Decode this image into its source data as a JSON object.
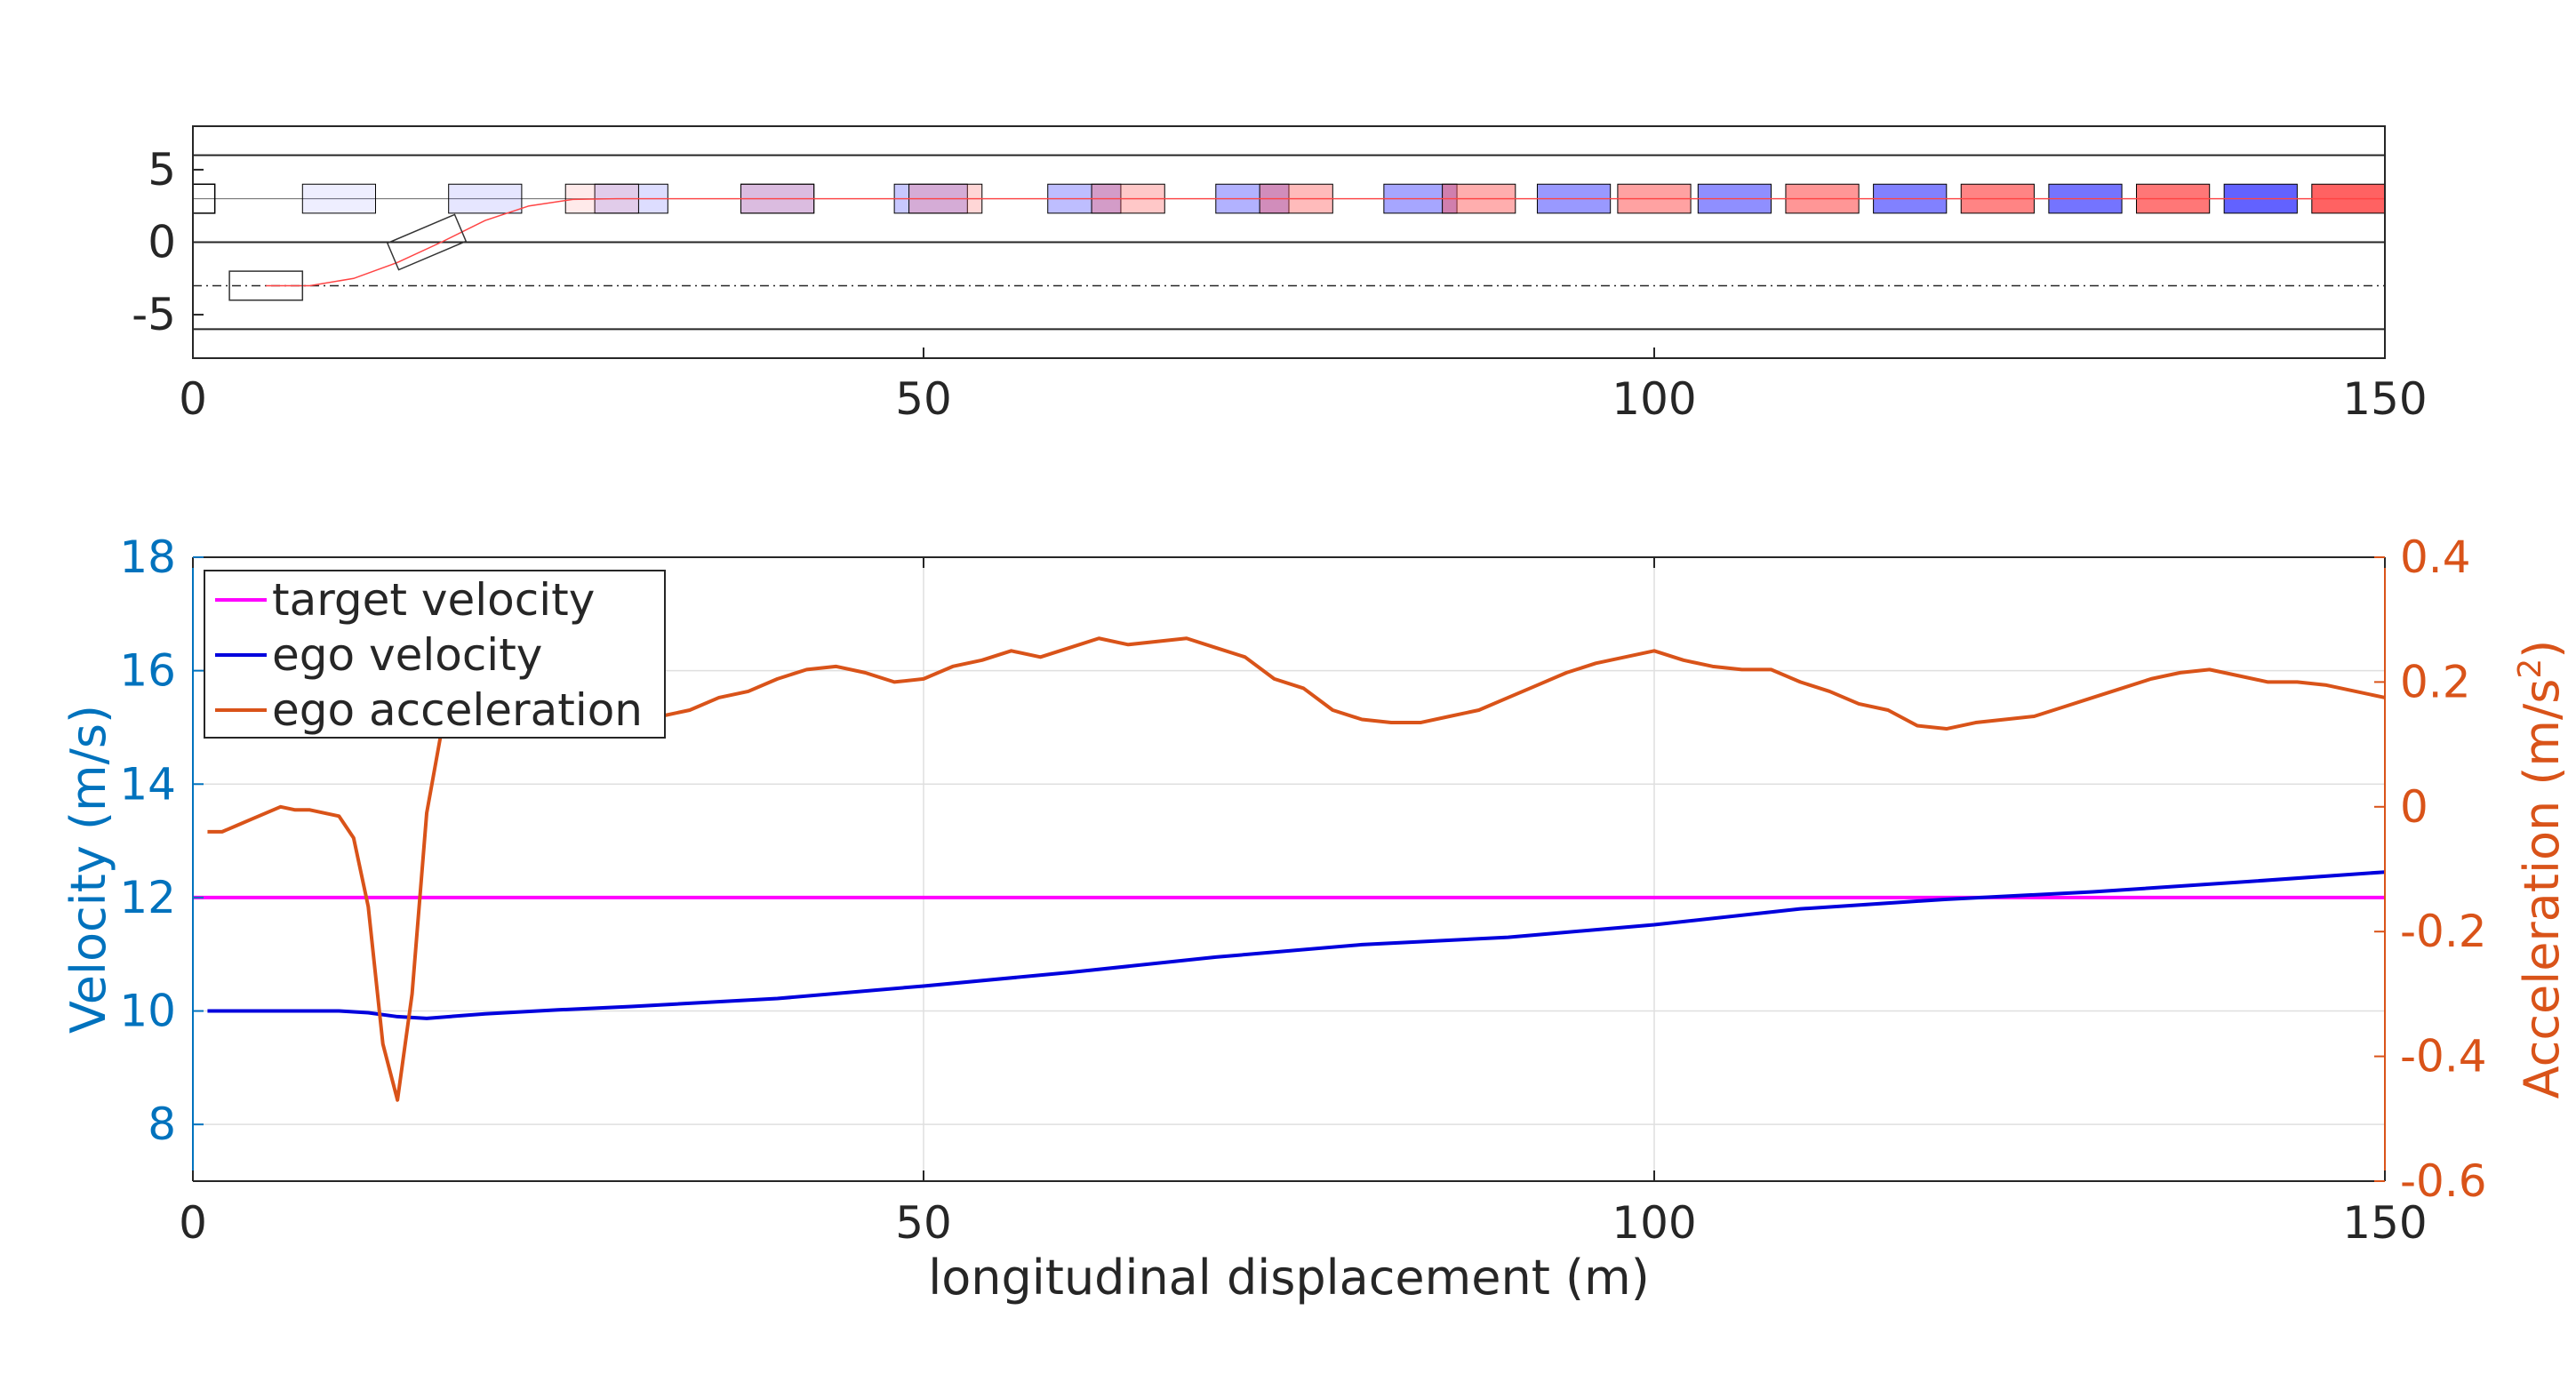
{
  "colors": {
    "axis": "#262626",
    "grid": "#dfdfdf",
    "lane_line": "#262626",
    "target_velocity": "#ff00ff",
    "ego_velocity": "#0000dd",
    "ego_acceleration": "#d95319",
    "left_axis": "#0072bd",
    "right_axis": "#d95319",
    "blue_vehicle": "#5555ff",
    "red_vehicle": "#ff5555",
    "reference_path": "#ff4444",
    "ego_box": "#333333"
  },
  "chart_data": [
    {
      "type": "scatter",
      "subtype": "vehicle-trajectory",
      "xlim": [
        0,
        150
      ],
      "ylim": [
        -8,
        8
      ],
      "x_ticks": [
        0,
        50,
        100,
        150
      ],
      "y_ticks": [
        -5,
        0,
        5
      ],
      "x_tick_labels": [
        "0",
        "50",
        "100",
        "150"
      ],
      "y_tick_labels": [
        "-5",
        "0",
        "5"
      ],
      "lane_boundaries_y": [
        -6,
        0,
        6
      ],
      "lane_center_dashed_y": [
        -3
      ],
      "lane_center_fine_y": [
        3
      ],
      "vehicle_length": 5,
      "vehicle_width": 2,
      "ego_outlines": [
        {
          "x": 5,
          "y": -3,
          "heading_deg": 0
        },
        {
          "x": 16,
          "y": 0,
          "heading_deg": 23
        }
      ],
      "ego_path": [
        [
          5,
          -3
        ],
        [
          8,
          -3
        ],
        [
          11,
          -2.5
        ],
        [
          14,
          -1.4
        ],
        [
          17,
          0
        ],
        [
          20,
          1.5
        ],
        [
          23,
          2.5
        ],
        [
          26,
          2.95
        ],
        [
          29,
          3
        ],
        [
          150,
          3
        ]
      ],
      "blue_vehicles": [
        {
          "x": 10,
          "y": 3,
          "opacity": 0.1
        },
        {
          "x": 20,
          "y": 3,
          "opacity": 0.15
        },
        {
          "x": 30,
          "y": 3,
          "opacity": 0.2
        },
        {
          "x": 40,
          "y": 3,
          "opacity": 0.26
        },
        {
          "x": 50.5,
          "y": 3,
          "opacity": 0.32
        },
        {
          "x": 61,
          "y": 3,
          "opacity": 0.38
        },
        {
          "x": 72.5,
          "y": 3,
          "opacity": 0.45
        },
        {
          "x": 84,
          "y": 3,
          "opacity": 0.52
        },
        {
          "x": 94.5,
          "y": 3,
          "opacity": 0.6
        },
        {
          "x": 105.5,
          "y": 3,
          "opacity": 0.66
        },
        {
          "x": 117.5,
          "y": 3,
          "opacity": 0.74
        },
        {
          "x": 129.5,
          "y": 3,
          "opacity": 0.82
        },
        {
          "x": 141.5,
          "y": 3,
          "opacity": 0.92
        }
      ],
      "red_vehicles": [
        {
          "x": 28,
          "y": 3,
          "opacity": 0.12
        },
        {
          "x": 40,
          "y": 3,
          "opacity": 0.18
        },
        {
          "x": 51.5,
          "y": 3,
          "opacity": 0.24
        },
        {
          "x": 64,
          "y": 3,
          "opacity": 0.32
        },
        {
          "x": 75.5,
          "y": 3,
          "opacity": 0.4
        },
        {
          "x": 88,
          "y": 3,
          "opacity": 0.48
        },
        {
          "x": 100,
          "y": 3,
          "opacity": 0.55
        },
        {
          "x": 111.5,
          "y": 3,
          "opacity": 0.62
        },
        {
          "x": 123.5,
          "y": 3,
          "opacity": 0.72
        },
        {
          "x": 135.5,
          "y": 3,
          "opacity": 0.8
        },
        {
          "x": 147.5,
          "y": 3,
          "opacity": 0.92
        }
      ],
      "left_edge_vehicle": {
        "x": 0.25,
        "y": 3,
        "length": 2.5
      }
    },
    {
      "type": "line",
      "xlabel": "longitudinal displacement (m)",
      "ylabel_left": "Velocity (m/s)",
      "ylabel_right": "Acceleration (m/s",
      "ylabel_right_sup": "2",
      "ylabel_right_close": ")",
      "xlim": [
        0,
        150
      ],
      "ylim_left": [
        7,
        18
      ],
      "ylim_right": [
        -0.6,
        0.4
      ],
      "x_ticks": [
        0,
        50,
        100,
        150
      ],
      "x_tick_labels": [
        "0",
        "50",
        "100",
        "150"
      ],
      "y_ticks_left": [
        8,
        10,
        12,
        14,
        16,
        18
      ],
      "y_tick_labels_left": [
        "8",
        "10",
        "12",
        "14",
        "16",
        "18"
      ],
      "y_ticks_right": [
        -0.6,
        -0.4,
        -0.2,
        0,
        0.2,
        0.4
      ],
      "y_tick_labels_right": [
        "-0.6",
        "-0.4",
        "-0.2",
        "0",
        "0.2",
        "0.4"
      ],
      "grid": true,
      "legend_position": "top-left",
      "series": [
        {
          "name": "target velocity",
          "axis": "left",
          "x": [
            0,
            150
          ],
          "values": [
            12,
            12
          ]
        },
        {
          "name": "ego velocity",
          "axis": "left",
          "x": [
            1,
            5,
            10,
            12,
            14,
            16,
            20,
            25,
            30,
            40,
            50,
            60,
            70,
            80,
            90,
            100,
            110,
            120,
            130,
            140,
            150
          ],
          "values": [
            10,
            10,
            10,
            9.97,
            9.9,
            9.87,
            9.95,
            10.02,
            10.08,
            10.22,
            10.44,
            10.68,
            10.95,
            11.17,
            11.3,
            11.52,
            11.8,
            11.97,
            12.1,
            12.27,
            12.45
          ]
        },
        {
          "name": "ego acceleration",
          "axis": "right",
          "x": [
            1,
            2,
            3,
            4,
            5,
            6,
            7,
            8,
            9,
            10,
            11,
            12,
            13,
            14,
            15,
            16,
            17,
            18,
            20,
            22,
            25,
            28,
            30,
            32,
            34,
            36,
            38,
            40,
            42,
            44,
            46,
            48,
            50,
            52,
            54,
            56,
            58,
            60,
            62,
            64,
            66,
            68,
            70,
            72,
            74,
            76,
            78,
            80,
            82,
            84,
            86,
            88,
            90,
            92,
            94,
            96,
            98,
            100,
            102,
            104,
            106,
            108,
            110,
            112,
            114,
            116,
            118,
            120,
            122,
            124,
            126,
            128,
            130,
            132,
            134,
            136,
            138,
            140,
            142,
            144,
            146,
            148,
            150
          ],
          "values": [
            -0.04,
            -0.04,
            -0.03,
            -0.02,
            -0.01,
            0,
            -0.005,
            -0.005,
            -0.01,
            -0.015,
            -0.05,
            -0.16,
            -0.38,
            -0.47,
            -0.3,
            -0.01,
            0.12,
            0.14,
            0.135,
            0.135,
            0.14,
            0.14,
            0.14,
            0.145,
            0.155,
            0.175,
            0.185,
            0.205,
            0.22,
            0.225,
            0.215,
            0.2,
            0.205,
            0.225,
            0.235,
            0.25,
            0.24,
            0.255,
            0.27,
            0.26,
            0.265,
            0.27,
            0.255,
            0.24,
            0.205,
            0.19,
            0.155,
            0.14,
            0.135,
            0.135,
            0.145,
            0.155,
            0.175,
            0.195,
            0.215,
            0.23,
            0.24,
            0.25,
            0.235,
            0.225,
            0.22,
            0.22,
            0.2,
            0.185,
            0.165,
            0.155,
            0.13,
            0.125,
            0.135,
            0.14,
            0.145,
            0.16,
            0.175,
            0.19,
            0.205,
            0.215,
            0.22,
            0.21,
            0.2,
            0.2,
            0.195,
            0.185,
            0.175
          ]
        }
      ]
    }
  ]
}
